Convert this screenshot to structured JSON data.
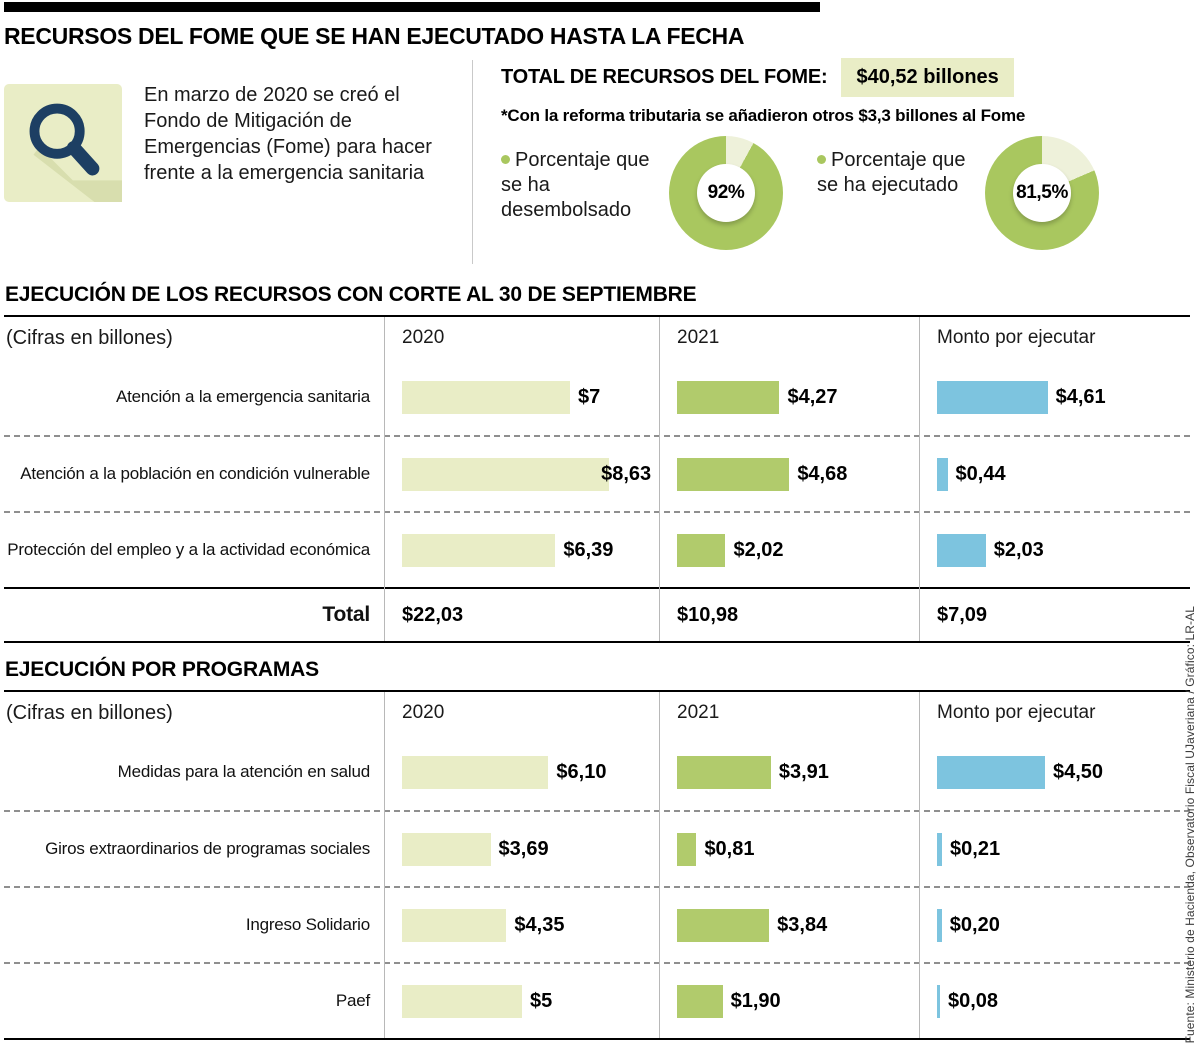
{
  "title": "RECURSOS DEL FOME QUE SE HAN EJECUTADO HASTA LA FECHA",
  "intro": {
    "text": "En marzo de 2020 se creó el Fondo de Mitigación de Emergencias (Fome) para hacer frente a la emergencia sanitaria"
  },
  "total": {
    "label": "TOTAL DE RECURSOS DEL FOME:",
    "value": "$40,52 billones",
    "note": "*Con la reforma tributaria se añadieron otros $3,3 billones al Fome"
  },
  "colors": {
    "bar_2020": "#e9edc6",
    "bar_2021": "#b1cb6c",
    "bar_monto": "#7dc4df",
    "donut_green": "#a9c75f",
    "donut_rest": "#eef1da",
    "highlight": "#e9edc6"
  },
  "chart_data": [
    {
      "type": "pie",
      "subtype": "donut",
      "label": "Porcentaje que se ha desembolsado",
      "value_pct": 92,
      "display": "92%"
    },
    {
      "type": "pie",
      "subtype": "donut",
      "label": "Porcentaje que se ha ejecutado",
      "value_pct": 81.5,
      "display": "81,5%"
    },
    {
      "type": "bar",
      "title": "EJECUCIÓN DE LOS RECURSOS CON CORTE AL 30 DE SEPTIEMBRE",
      "unit_note": "(Cifras en billones)",
      "columns": [
        "2020",
        "2021",
        "Monto por ejecutar"
      ],
      "rows": [
        {
          "label": "Atención a la emergencia sanitaria",
          "values": [
            7,
            4.27,
            4.61
          ],
          "display": [
            "$7",
            "$4,27",
            "$4,61"
          ]
        },
        {
          "label": "Atención a la población en condición vulnerable",
          "values": [
            8.63,
            4.68,
            0.44
          ],
          "display": [
            "$8,63",
            "$4,68",
            "$0,44"
          ]
        },
        {
          "label": "Protección del empleo y a la actividad económica",
          "values": [
            6.39,
            2.02,
            2.03
          ],
          "display": [
            "$6,39",
            "$2,02",
            "$2,03"
          ]
        }
      ],
      "total": {
        "label": "Total",
        "values": [
          22.03,
          10.98,
          7.09
        ],
        "display": [
          "$22,03",
          "$10,98",
          "$7,09"
        ]
      }
    },
    {
      "type": "bar",
      "title": "EJECUCIÓN POR PROGRAMAS",
      "unit_note": "(Cifras en billones)",
      "columns": [
        "2020",
        "2021",
        "Monto por ejecutar"
      ],
      "rows": [
        {
          "label": "Medidas para la atención en salud",
          "values": [
            6.1,
            3.91,
            4.5
          ],
          "display": [
            "$6,10",
            "$3,91",
            "$4,50"
          ]
        },
        {
          "label": "Giros extraordinarios de programas sociales",
          "values": [
            3.69,
            0.81,
            0.21
          ],
          "display": [
            "$3,69",
            "$0,81",
            "$0,21"
          ]
        },
        {
          "label": "Ingreso Solidario",
          "values": [
            4.35,
            3.84,
            0.2
          ],
          "display": [
            "$4,35",
            "$3,84",
            "$0,20"
          ]
        },
        {
          "label": "Paef",
          "values": [
            5,
            1.9,
            0.08
          ],
          "display": [
            "$5",
            "$1,90",
            "$0,08"
          ]
        }
      ]
    }
  ],
  "source": "Fuente: Ministerio de Hacienda, Observatorio Fiscal UJaveriana / Gráfico: LR-AL"
}
